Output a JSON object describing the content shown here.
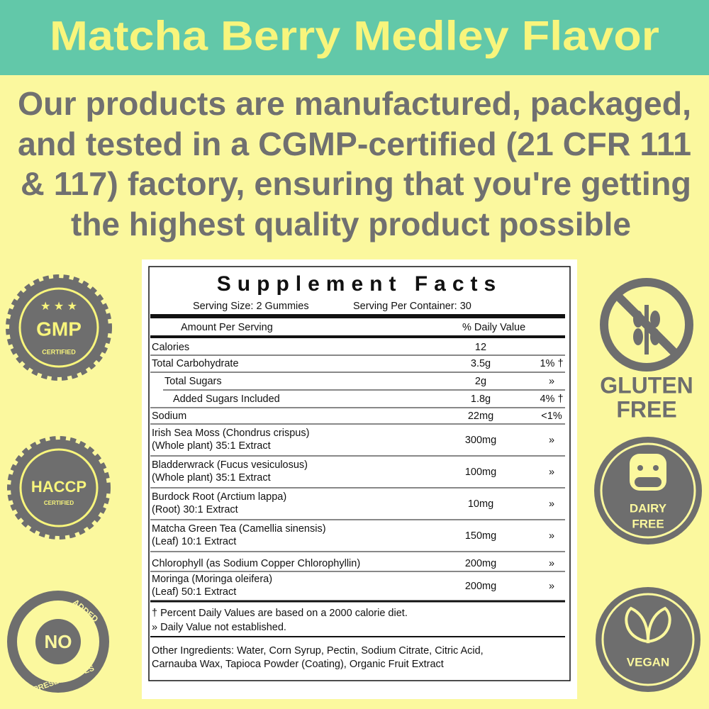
{
  "header": {
    "title": "Matcha Berry Medley Flavor"
  },
  "intro": {
    "lines": [
      "Our products are manufactured, packaged,",
      "and tested in a CGMP-certified (21 CFR 111",
      "& 117) factory, ensuring that you're getting",
      "the highest quality product possible"
    ]
  },
  "badges": {
    "gmp": {
      "label": "GMP",
      "sub": "CERTIFIED"
    },
    "haccp": {
      "label": "HACCP",
      "sub": "CERTIFIED"
    },
    "preservatives": {
      "label": "NO",
      "top": "ADDED",
      "bottom": "PRESERVATIVES"
    },
    "gluten": {
      "line1": "GLUTEN",
      "line2": "FREE"
    },
    "dairy": {
      "line1": "DAIRY",
      "line2": "FREE"
    },
    "vegan": {
      "label": "VEGAN"
    }
  },
  "facts": {
    "title": "Supplement Facts",
    "serving_size": "Serving Size: 2 Gummies",
    "servings": "Serving Per Container: 30",
    "header": [
      "Amount Per Serving",
      "% Daily Value"
    ],
    "rows": [
      {
        "name": [
          "Calories"
        ],
        "amount": "12"
      },
      {
        "name": [
          "Total Carbohydrate"
        ],
        "amount": "3.5g",
        "dv": "1% †"
      },
      {
        "name": [
          "Total Sugars"
        ],
        "amount": "2g",
        "dv": "»"
      },
      {
        "name": [
          "Added Sugars Included"
        ],
        "amount": "1.8g",
        "dv": "4% †"
      },
      {
        "name": [
          "Sodium"
        ],
        "amount": "22mg",
        "dv": "<1%"
      },
      {
        "name": [
          "Irish Sea Moss (Chondrus crispus)",
          "(Whole plant) 35:1 Extract"
        ],
        "amount": "300mg",
        "dv": "»"
      },
      {
        "name": [
          "Bladderwrack (Fucus vesiculosus)",
          "(Whole plant) 35:1 Extract"
        ],
        "amount": "100mg",
        "dv": "»"
      },
      {
        "name": [
          "Burdock Root (Arctium lappa)",
          "(Root)  30:1 Extract"
        ],
        "amount": "10mg",
        "dv": "»"
      },
      {
        "name": [
          "Matcha Green Tea (Camellia sinensis)",
          "(Leaf)  10:1 Extract"
        ],
        "amount": "150mg",
        "dv": "»"
      },
      {
        "name": [
          "Chlorophyll (as Sodium Copper Chlorophyllin)"
        ],
        "amount": "200mg",
        "dv": "»"
      },
      {
        "name": [
          "Moringa (Moringa oleifera)",
          "(Leaf) 50:1 Extract"
        ],
        "amount": "200mg",
        "dv": "»"
      }
    ],
    "footnotes": [
      "† Percent Daily Values are based on a 2000 calorie diet.",
      "» Daily Value not established."
    ],
    "other_ingredients": [
      "Other Ingredients: Water, Corn Syrup, Pectin, Sodium Citrate, Citric Acid,",
      "Carnauba Wax, Tapioca Powder (Coating), Organic Fruit Extract"
    ]
  }
}
